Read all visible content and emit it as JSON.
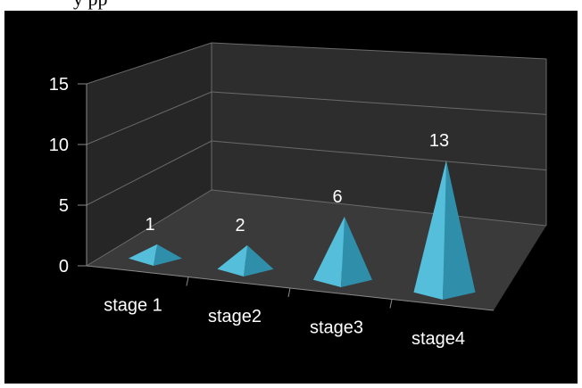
{
  "document_fragment": "y pp",
  "colors": {
    "background": "#000000",
    "wall": "#2d2d2d",
    "floor": "#3a3a3a",
    "gridline": "#6a6a6a",
    "axis_text": "#ffffff",
    "pyramid_left": "#6fd1ea",
    "pyramid_front": "#55bedb",
    "pyramid_right": "#2f8fab"
  },
  "chart_data": {
    "type": "bar",
    "style": "3d-pyramid",
    "categories": [
      "stage 1",
      "stage2",
      "stage3",
      "stage4"
    ],
    "values": [
      1,
      2,
      6,
      13
    ],
    "data_labels": [
      "1",
      "2",
      "6",
      "13"
    ],
    "y_ticks": [
      "0",
      "5",
      "10",
      "15"
    ],
    "ylim": [
      0,
      15
    ],
    "grid": true,
    "legend": "none"
  }
}
